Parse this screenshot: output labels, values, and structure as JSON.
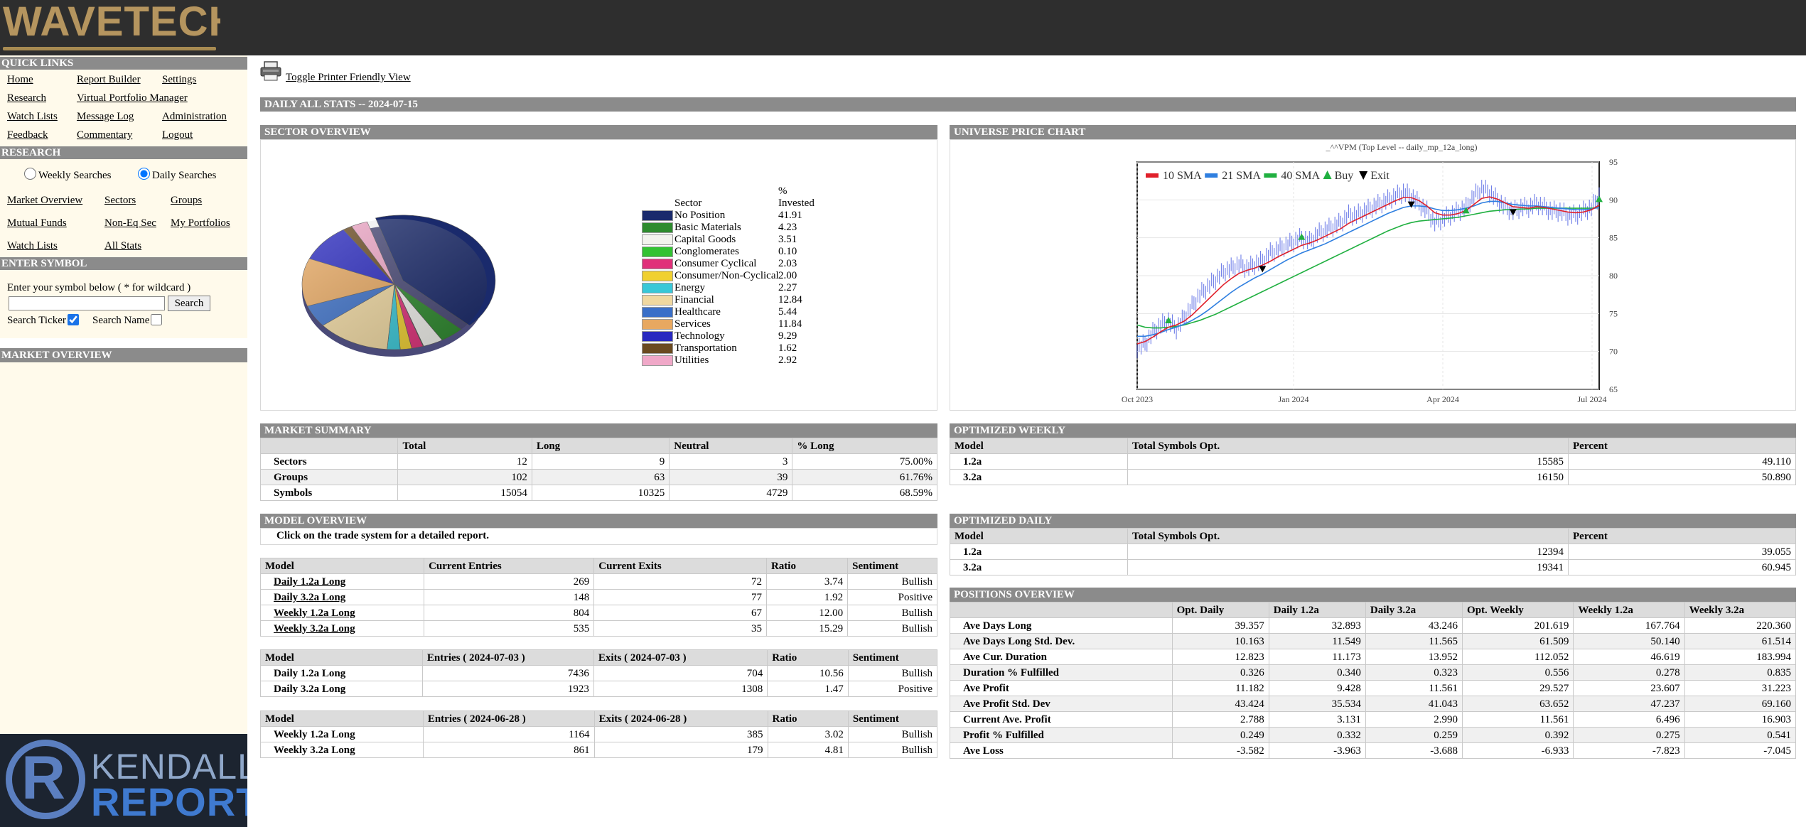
{
  "brand": {
    "logo_text": "WAVETECH",
    "footer_logo_line1": "KENDALL",
    "footer_logo_line2": "REPORT"
  },
  "sidebar": {
    "quick_links_title": "QUICK LINKS",
    "quick_links": [
      "Home",
      "Report Builder",
      "Settings",
      "Research",
      "Virtual Portfolio Manager",
      "Watch Lists",
      "Message Log",
      "Administration",
      "Feedback",
      "Commentary",
      "Logout"
    ],
    "research_title": "RESEARCH",
    "weekly_searches": "Weekly Searches",
    "daily_searches": "Daily Searches",
    "research_links": [
      "Market Overview",
      "Sectors",
      "Groups",
      "Mutual Funds",
      "Non-Eq Sec",
      "My Portfolios",
      "Watch Lists",
      "All Stats"
    ],
    "enter_symbol_title": "ENTER SYMBOL",
    "enter_symbol_hint": "Enter your symbol below ( * for wildcard )",
    "search_button": "Search",
    "search_ticker": "Search Ticker",
    "search_name": "Search Name",
    "market_overview_title": "MARKET OVERVIEW"
  },
  "main": {
    "printer_link": "Toggle Printer Friendly View",
    "page_title": "DAILY ALL STATS -- 2024-07-15",
    "sector_overview_title": "SECTOR OVERVIEW",
    "universe_chart_title": "UNIVERSE PRICE CHART",
    "market_summary_title": "MARKET SUMMARY",
    "optimized_weekly_title": "OPTIMIZED WEEKLY",
    "model_overview_title": "MODEL OVERVIEW",
    "optimized_daily_title": "OPTIMIZED DAILY",
    "positions_overview_title": "POSITIONS OVERVIEW",
    "model_overview_note": "Click on the trade system for a detailed report."
  },
  "sector_legend": {
    "header_line1": "%",
    "header_sector": "Sector",
    "header_invested": "Invested",
    "rows": [
      {
        "name": "No Position",
        "value": "41.91",
        "color": "#1a2a6c"
      },
      {
        "name": "Basic Materials",
        "value": "4.23",
        "color": "#2e8b2e"
      },
      {
        "name": "Capital Goods",
        "value": "3.51",
        "color": "#f3f3ee"
      },
      {
        "name": "Conglomerates",
        "value": "0.10",
        "color": "#33c233"
      },
      {
        "name": "Consumer Cyclical",
        "value": "2.03",
        "color": "#e0307a"
      },
      {
        "name": "Consumer/Non-Cyclical",
        "value": "2.00",
        "color": "#f0d030"
      },
      {
        "name": "Energy",
        "value": "2.27",
        "color": "#38c8d8"
      },
      {
        "name": "Financial",
        "value": "12.84",
        "color": "#f0d8a0"
      },
      {
        "name": "Healthcare",
        "value": "5.44",
        "color": "#3a6fc8"
      },
      {
        "name": "Services",
        "value": "11.84",
        "color": "#e8a860"
      },
      {
        "name": "Technology",
        "value": "9.29",
        "color": "#2828c0"
      },
      {
        "name": "Transportation",
        "value": "1.62",
        "color": "#6a4a20"
      },
      {
        "name": "Utilities",
        "value": "2.92",
        "color": "#f0a8c8"
      }
    ]
  },
  "chart_data": {
    "type": "line",
    "title": "_^^VPM (Top Level -- daily_mp_12a_long)",
    "legend": [
      "10 SMA",
      "21 SMA",
      "40 SMA",
      "Buy",
      "Exit"
    ],
    "legend_colors": [
      "#e0202a",
      "#2f7fe0",
      "#20b040",
      "#20b040",
      "#000000"
    ],
    "x_ticks": [
      "Oct 2023",
      "Jan 2024",
      "Apr 2024",
      "Jul 2024"
    ],
    "y_ticks": [
      65,
      70,
      75,
      80,
      85,
      90,
      95
    ],
    "ylim": [
      65,
      95
    ],
    "price": [
      70.5,
      71,
      72.5,
      73.5,
      74,
      73,
      74.5,
      76,
      77.5,
      78.5,
      79.5,
      80.5,
      81,
      81.5,
      81,
      81.5,
      82,
      83,
      83.5,
      84,
      84.5,
      85,
      84.5,
      85.5,
      86,
      86.5,
      87,
      88,
      88,
      88.5,
      89,
      89.5,
      90,
      90.5,
      91,
      90.5,
      89.5,
      88.5,
      87,
      87.5,
      88,
      88.5,
      89,
      90.5,
      91.5,
      91,
      90,
      89,
      88.5,
      89,
      89,
      89.5,
      89,
      88.5,
      88.5,
      88,
      88,
      88.5,
      89,
      90.5
    ],
    "sma10": [
      71,
      71.3,
      71.9,
      72.6,
      73.2,
      73.5,
      74,
      74.8,
      75.8,
      76.8,
      77.8,
      78.8,
      79.6,
      80.3,
      80.7,
      81,
      81.4,
      81.9,
      82.5,
      83,
      83.5,
      84,
      84.3,
      84.7,
      85.2,
      85.7,
      86.2,
      86.9,
      87.4,
      87.9,
      88.4,
      88.9,
      89.4,
      89.9,
      90.3,
      90.3,
      89.9,
      89.2,
      88.3,
      88,
      88,
      88.2,
      88.6,
      89.4,
      90.2,
      90.4,
      90.1,
      89.6,
      89.1,
      89,
      88.9,
      89.1,
      89,
      88.8,
      88.6,
      88.4,
      88.3,
      88.4,
      88.7,
      89.3
    ],
    "sma21": [
      72,
      72,
      72.2,
      72.5,
      72.9,
      73.2,
      73.6,
      74.1,
      74.7,
      75.4,
      76.2,
      77,
      77.8,
      78.5,
      79.1,
      79.7,
      80.2,
      80.8,
      81.4,
      82,
      82.5,
      83,
      83.4,
      83.8,
      84.2,
      84.7,
      85.2,
      85.7,
      86.2,
      86.7,
      87.2,
      87.7,
      88.2,
      88.6,
      89,
      89.2,
      89.2,
      89.1,
      88.8,
      88.6,
      88.6,
      88.7,
      88.9,
      89.2,
      89.6,
      89.8,
      89.8,
      89.6,
      89.4,
      89.3,
      89.2,
      89.2,
      89.1,
      89,
      88.9,
      88.8,
      88.7,
      88.7,
      88.8,
      89
    ],
    "sma40": [
      73.5,
      73.2,
      73.1,
      73.1,
      73.2,
      73.3,
      73.5,
      73.8,
      74.1,
      74.5,
      74.9,
      75.4,
      75.9,
      76.4,
      76.9,
      77.4,
      77.9,
      78.4,
      78.9,
      79.4,
      79.9,
      80.4,
      80.9,
      81.4,
      81.9,
      82.4,
      82.9,
      83.4,
      83.9,
      84.4,
      84.9,
      85.4,
      85.9,
      86.3,
      86.7,
      87,
      87.2,
      87.3,
      87.4,
      87.5,
      87.6,
      87.7,
      87.9,
      88.1,
      88.3,
      88.5,
      88.6,
      88.7,
      88.7,
      88.8,
      88.8,
      88.9,
      88.9,
      88.9,
      88.9,
      88.9,
      88.9,
      88.9,
      88.9,
      89
    ],
    "buys": [
      [
        4,
        74
      ],
      [
        21,
        85
      ],
      [
        42,
        88.5
      ],
      [
        59,
        90
      ]
    ],
    "exits": [
      [
        16,
        81
      ],
      [
        35,
        89.5
      ],
      [
        48,
        88.5
      ]
    ]
  },
  "market_summary": {
    "headers": [
      "",
      "Total",
      "Long",
      "Neutral",
      "% Long"
    ],
    "rows": [
      [
        "Sectors",
        "12",
        "9",
        "3",
        "75.00%"
      ],
      [
        "Groups",
        "102",
        "63",
        "39",
        "61.76%"
      ],
      [
        "Symbols",
        "15054",
        "10325",
        "4729",
        "68.59%"
      ]
    ]
  },
  "optimized_weekly": {
    "headers": [
      "Model",
      "Total Symbols Opt.",
      "Percent"
    ],
    "rows": [
      [
        "1.2a",
        "15585",
        "49.110"
      ],
      [
        "3.2a",
        "16150",
        "50.890"
      ]
    ]
  },
  "optimized_daily": {
    "headers": [
      "Model",
      "Total Symbols Opt.",
      "Percent"
    ],
    "rows": [
      [
        "1.2a",
        "12394",
        "39.055"
      ],
      [
        "3.2a",
        "19341",
        "60.945"
      ]
    ]
  },
  "model_overview_1": {
    "headers": [
      "Model",
      "Current Entries",
      "Current Exits",
      "Ratio",
      "Sentiment"
    ],
    "rows": [
      [
        "Daily 1.2a Long",
        "269",
        "72",
        "3.74",
        "Bullish"
      ],
      [
        "Daily 3.2a Long",
        "148",
        "77",
        "1.92",
        "Positive"
      ],
      [
        "Weekly 1.2a Long",
        "804",
        "67",
        "12.00",
        "Bullish"
      ],
      [
        "Weekly 3.2a Long",
        "535",
        "35",
        "15.29",
        "Bullish"
      ]
    ]
  },
  "model_overview_2": {
    "headers": [
      "Model",
      "Entries ( 2024-07-03 )",
      "Exits ( 2024-07-03 )",
      "Ratio",
      "Sentiment"
    ],
    "rows": [
      [
        "Daily 1.2a Long",
        "7436",
        "704",
        "10.56",
        "Bullish"
      ],
      [
        "Daily 3.2a Long",
        "1923",
        "1308",
        "1.47",
        "Positive"
      ]
    ]
  },
  "model_overview_3": {
    "headers": [
      "Model",
      "Entries ( 2024-06-28 )",
      "Exits ( 2024-06-28 )",
      "Ratio",
      "Sentiment"
    ],
    "rows": [
      [
        "Weekly 1.2a Long",
        "1164",
        "385",
        "3.02",
        "Bullish"
      ],
      [
        "Weekly 3.2a Long",
        "861",
        "179",
        "4.81",
        "Bullish"
      ]
    ]
  },
  "positions_overview": {
    "headers": [
      "",
      "Opt. Daily",
      "Daily 1.2a",
      "Daily 3.2a",
      "Opt. Weekly",
      "Weekly 1.2a",
      "Weekly 3.2a"
    ],
    "rows": [
      [
        "Ave Days Long",
        "39.357",
        "32.893",
        "43.246",
        "201.619",
        "167.764",
        "220.360"
      ],
      [
        "Ave Days Long Std. Dev.",
        "10.163",
        "11.549",
        "11.565",
        "61.509",
        "50.140",
        "61.514"
      ],
      [
        "Ave Cur. Duration",
        "12.823",
        "11.173",
        "13.952",
        "112.052",
        "46.619",
        "183.994"
      ],
      [
        "Duration % Fulfilled",
        "0.326",
        "0.340",
        "0.323",
        "0.556",
        "0.278",
        "0.835"
      ],
      [
        "Ave Profit",
        "11.182",
        "9.428",
        "11.561",
        "29.527",
        "23.607",
        "31.223"
      ],
      [
        "Ave Profit Std. Dev",
        "43.424",
        "35.534",
        "41.043",
        "63.652",
        "47.237",
        "69.160"
      ],
      [
        "Current Ave. Profit",
        "2.788",
        "3.131",
        "2.990",
        "11.561",
        "6.496",
        "16.903"
      ],
      [
        "Profit % Fulfilled",
        "0.249",
        "0.332",
        "0.259",
        "0.392",
        "0.275",
        "0.541"
      ],
      [
        "Ave Loss",
        "-3.582",
        "-3.963",
        "-3.688",
        "-6.933",
        "-7.823",
        "-7.045"
      ]
    ]
  }
}
